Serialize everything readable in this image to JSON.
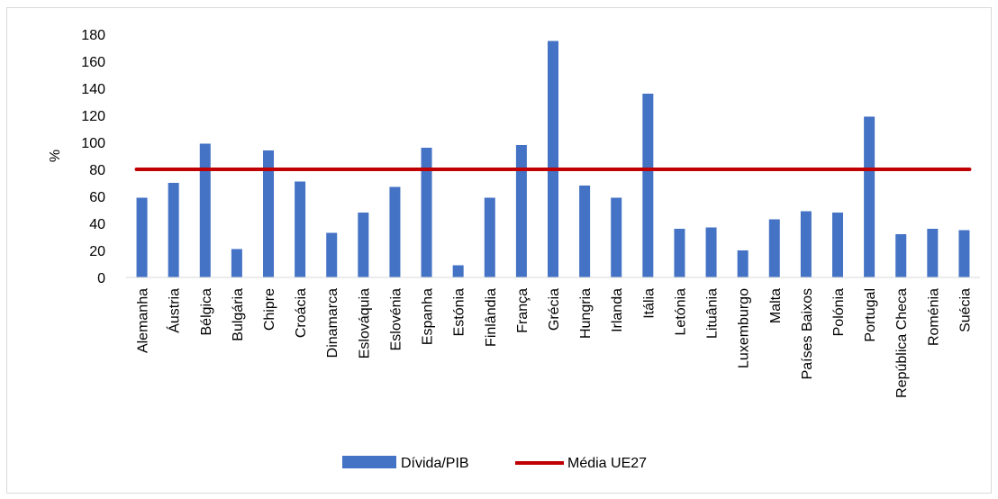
{
  "chart_data": {
    "type": "bar",
    "ylabel": "%",
    "ylim": [
      0,
      180
    ],
    "yticks": [
      0,
      20,
      40,
      60,
      80,
      100,
      120,
      140,
      160,
      180
    ],
    "grid": false,
    "legend_position": "bottom",
    "categories": [
      "Alemanha",
      "Áustria",
      "Bélgica",
      "Bulgária",
      "Chipre",
      "Croácia",
      "Dinamarca",
      "Eslováquia",
      "Eslovénia",
      "Espanha",
      "Estónia",
      "Finlândia",
      "França",
      "Grécia",
      "Hungria",
      "Irlanda",
      "Itália",
      "Letónia",
      "Lituânia",
      "Luxemburgo",
      "Malta",
      "Países Baixos",
      "Polónia",
      "Portugal",
      "República Checa",
      "Roménia",
      "Suécia"
    ],
    "series": [
      {
        "name": "Dívida/PIB",
        "type": "bar",
        "color": "#4472C4",
        "values": [
          59,
          70,
          99,
          21,
          94,
          71,
          33,
          48,
          67,
          96,
          9,
          59,
          98,
          175,
          68,
          59,
          136,
          36,
          37,
          20,
          43,
          49,
          48,
          119,
          32,
          36,
          35
        ]
      },
      {
        "name": "Média UE27",
        "type": "line",
        "color": "#C00000",
        "values": [
          80,
          80,
          80,
          80,
          80,
          80,
          80,
          80,
          80,
          80,
          80,
          80,
          80,
          80,
          80,
          80,
          80,
          80,
          80,
          80,
          80,
          80,
          80,
          80,
          80,
          80,
          80
        ]
      }
    ]
  }
}
